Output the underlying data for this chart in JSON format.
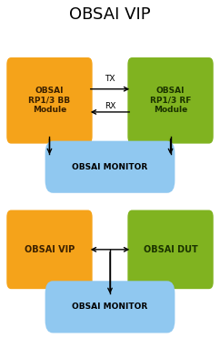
{
  "title": "OBSAI VIP",
  "title_fontsize": 13,
  "background_color": "#ffffff",
  "orange_color": "#F5A31A",
  "green_color": "#80B320",
  "blue_color": "#90C8F0",
  "diagram1": {
    "bb_label": "OBSAI\nRP1/3 BB\nModule",
    "rf_label": "OBSAI\nRP1/3 RF\nModule",
    "monitor_label": "OBSAI MONITOR",
    "tx_label": "TX",
    "rx_label": "RX"
  },
  "diagram2": {
    "vip_label": "OBSAI VIP",
    "dut_label": "OBSAI DUT",
    "monitor_label": "OBSAI MONITOR"
  }
}
